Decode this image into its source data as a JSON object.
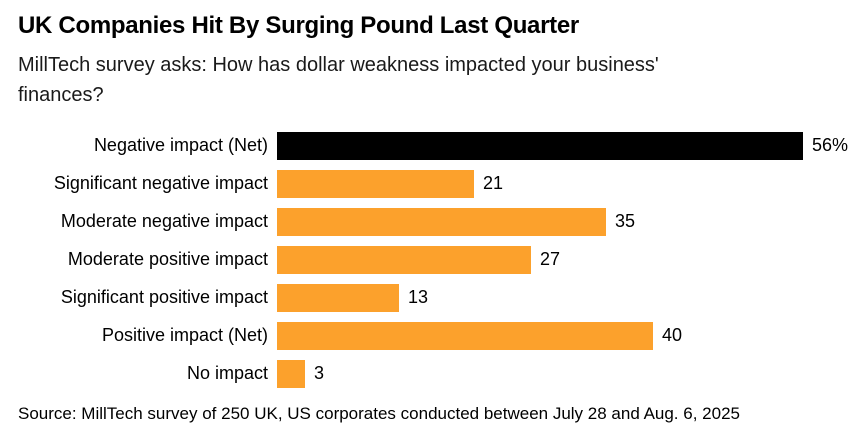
{
  "header": {
    "title": "UK Companies Hit By Surging Pound Last Quarter",
    "subtitle": "MillTech survey asks: How has dollar weakness impacted your business' finances?"
  },
  "chart_data": {
    "type": "bar",
    "orientation": "horizontal",
    "title": "UK Companies Hit By Surging Pound Last Quarter",
    "subtitle": "MillTech survey asks: How has dollar weakness impacted your business' finances?",
    "categories": [
      "Negative impact (Net)",
      "Significant negative impact",
      "Moderate negative impact",
      "Moderate positive impact",
      "Significant positive impact",
      "Positive impact (Net)",
      "No impact"
    ],
    "values": [
      56,
      21,
      35,
      27,
      13,
      40,
      3
    ],
    "value_labels": [
      "56%",
      "21",
      "35",
      "27",
      "13",
      "40",
      "3"
    ],
    "bar_colors": [
      "#000000",
      "#FCA12C",
      "#FCA12C",
      "#FCA12C",
      "#FCA12C",
      "#FCA12C",
      "#FCA12C"
    ],
    "accent_color": "#FCA12C",
    "net_highlight_color": "#000000",
    "xlabel": "",
    "ylabel": "",
    "xlim": [
      0,
      56
    ],
    "grid": false,
    "legend": false,
    "value_label_position": "end-of-bar"
  },
  "footer": {
    "source": "Source: MillTech survey of 250 UK, US corporates conducted between July 28 and Aug. 6, 2025"
  }
}
